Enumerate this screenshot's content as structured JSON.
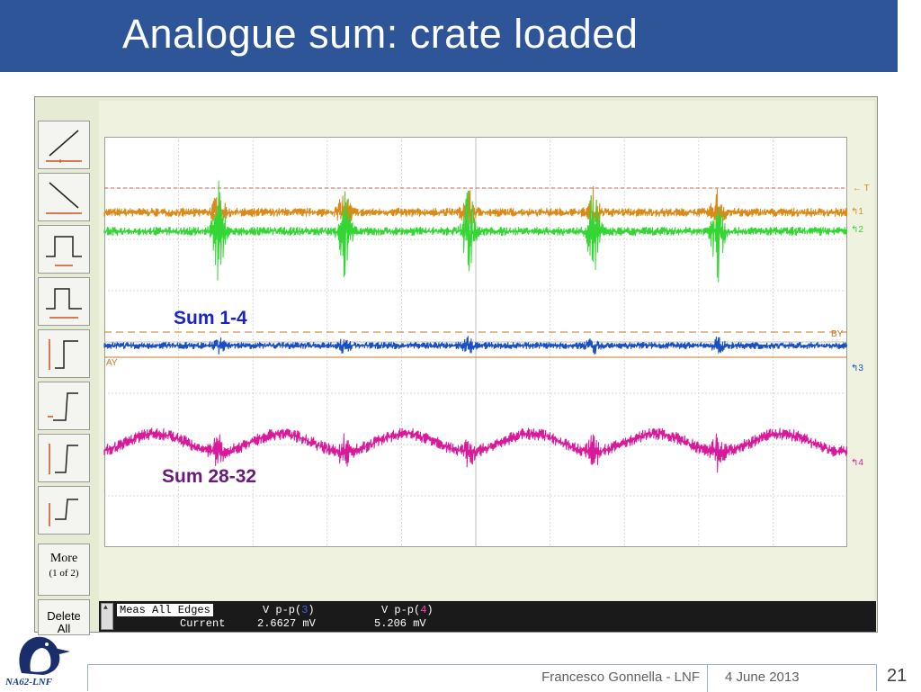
{
  "slide": {
    "title": "Analogue sum: crate loaded",
    "footer_author": "Francesco Gonnella - LNF",
    "footer_date": "4 June 2013",
    "page_number": "21",
    "logo_text": "NA62-LNF"
  },
  "annotations": {
    "sum1": "Sum 1-4",
    "sum2": "Sum 28-32"
  },
  "scope": {
    "sidebar": {
      "more_label": "More",
      "more_page": "(1 of 2)",
      "delete_label": "Delete",
      "delete_sub": "All"
    },
    "markers": {
      "trigger": "T",
      "ch1": "1",
      "ch2": "2",
      "ch3": "3",
      "ch4": "4",
      "cursor_a": "AY",
      "cursor_b": "BY"
    },
    "measurement": {
      "selector": "Meas All Edges",
      "row_label": "Current",
      "col3_header_prefix": "V p-p(",
      "col3_channel": "3",
      "col4_header_prefix": "V p-p(",
      "col4_channel": "4",
      "header_suffix": ")",
      "col3_value": "2.6627 mV",
      "col4_value": "5.206 mV"
    },
    "colors": {
      "ch1": "#d98a1a",
      "ch2": "#33d633",
      "ch3": "#1a4fc0",
      "ch4": "#d81a9a",
      "cursor": "#c8782a",
      "trigger": "#d06040"
    }
  }
}
